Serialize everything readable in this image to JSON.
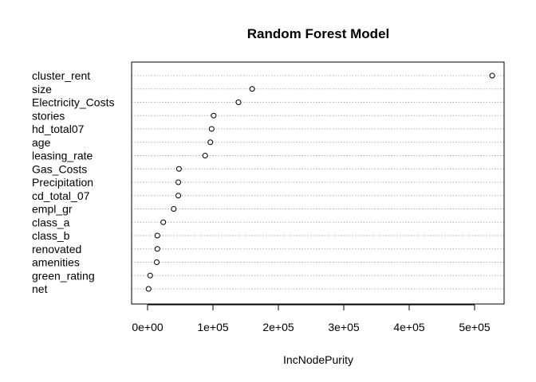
{
  "chart_data": {
    "type": "scatter",
    "title": "Random Forest Model",
    "xlabel": "IncNodePurity",
    "ylabel": "",
    "xlim": [
      0,
      530000
    ],
    "x_ticks": [
      0,
      100000,
      200000,
      300000,
      400000,
      500000
    ],
    "x_tick_labels": [
      "0e+00",
      "1e+05",
      "2e+05",
      "3e+05",
      "4e+05",
      "5e+05"
    ],
    "grid": "horizontal dotted lines at each category",
    "marker": "open circle",
    "categories": [
      "cluster_rent",
      "size",
      "Electricity_Costs",
      "stories",
      "hd_total07",
      "age",
      "leasing_rate",
      "Gas_Costs",
      "Precipitation",
      "cd_total_07",
      "empl_gr",
      "class_a",
      "class_b",
      "renovated",
      "amenities",
      "green_rating",
      "net"
    ],
    "values": [
      527000,
      160000,
      139000,
      101000,
      98000,
      96000,
      88000,
      48000,
      47000,
      47000,
      40000,
      24000,
      15000,
      15000,
      14000,
      4000,
      1500
    ]
  }
}
